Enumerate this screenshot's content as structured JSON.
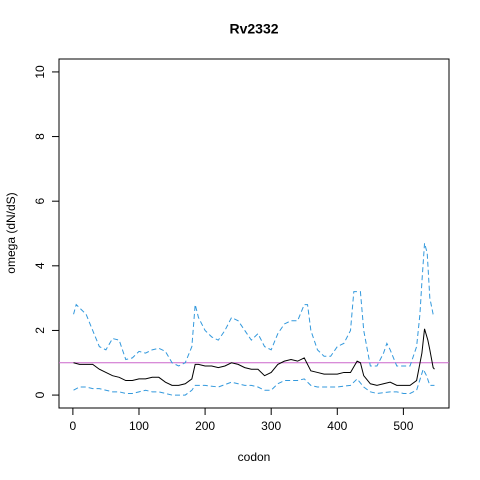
{
  "chart_data": {
    "type": "line",
    "title": "Rv2332",
    "x_label": "codon",
    "y_label": "omega (dN/dS)",
    "xlim": [
      -21,
      569
    ],
    "ylim": [
      -0.4,
      10.4
    ],
    "xticks": [
      0,
      100,
      200,
      300,
      400,
      500
    ],
    "yticks": [
      0,
      2,
      4,
      6,
      8,
      10
    ],
    "hline": 1,
    "hline_color": "#cc66cc",
    "series": [
      {
        "name": "upper",
        "color": "#3399dd",
        "dashed": true,
        "x": [
          1,
          5,
          10,
          20,
          30,
          40,
          50,
          60,
          70,
          80,
          90,
          100,
          110,
          120,
          130,
          140,
          150,
          160,
          170,
          180,
          185,
          190,
          200,
          210,
          220,
          230,
          240,
          250,
          260,
          270,
          280,
          290,
          300,
          310,
          320,
          330,
          340,
          350,
          355,
          360,
          370,
          380,
          390,
          400,
          410,
          420,
          425,
          435,
          440,
          450,
          460,
          470,
          475,
          480,
          490,
          500,
          510,
          520,
          525,
          528,
          532,
          536,
          540,
          545,
          547
        ],
        "values": [
          2.5,
          2.8,
          2.7,
          2.5,
          2.0,
          1.5,
          1.4,
          1.75,
          1.7,
          1.1,
          1.15,
          1.35,
          1.3,
          1.4,
          1.45,
          1.35,
          1.0,
          0.9,
          1.0,
          1.5,
          2.8,
          2.4,
          2.0,
          1.8,
          1.7,
          2.0,
          2.4,
          2.3,
          2.0,
          1.7,
          1.9,
          1.5,
          1.4,
          1.9,
          2.2,
          2.3,
          2.3,
          2.8,
          2.8,
          2.0,
          1.4,
          1.2,
          1.2,
          1.5,
          1.6,
          2.0,
          3.2,
          3.2,
          2.0,
          0.9,
          0.9,
          1.3,
          1.6,
          1.4,
          0.9,
          0.9,
          0.9,
          1.5,
          2.5,
          3.5,
          4.7,
          4.4,
          3.0,
          2.5,
          2.45
        ]
      },
      {
        "name": "omega",
        "color": "#000000",
        "dashed": false,
        "x": [
          1,
          10,
          20,
          30,
          40,
          50,
          60,
          70,
          80,
          90,
          100,
          110,
          120,
          130,
          140,
          150,
          160,
          170,
          180,
          185,
          190,
          200,
          210,
          220,
          230,
          240,
          250,
          260,
          270,
          280,
          290,
          300,
          310,
          320,
          330,
          340,
          350,
          360,
          370,
          380,
          390,
          400,
          410,
          420,
          430,
          435,
          440,
          450,
          460,
          470,
          480,
          490,
          500,
          510,
          520,
          528,
          532,
          537,
          540,
          545,
          547
        ],
        "values": [
          1.0,
          0.95,
          0.95,
          0.95,
          0.8,
          0.7,
          0.6,
          0.55,
          0.45,
          0.45,
          0.5,
          0.5,
          0.55,
          0.55,
          0.4,
          0.3,
          0.3,
          0.35,
          0.5,
          0.95,
          0.95,
          0.9,
          0.9,
          0.85,
          0.9,
          1.0,
          0.95,
          0.85,
          0.8,
          0.8,
          0.6,
          0.7,
          0.95,
          1.05,
          1.1,
          1.05,
          1.15,
          0.75,
          0.7,
          0.65,
          0.65,
          0.65,
          0.7,
          0.7,
          1.05,
          1.0,
          0.6,
          0.35,
          0.3,
          0.35,
          0.4,
          0.3,
          0.3,
          0.3,
          0.45,
          1.3,
          2.05,
          1.7,
          1.4,
          0.85,
          0.8
        ]
      },
      {
        "name": "lower",
        "color": "#3399dd",
        "dashed": true,
        "x": [
          1,
          10,
          20,
          30,
          40,
          50,
          60,
          70,
          80,
          90,
          100,
          110,
          120,
          130,
          140,
          150,
          160,
          170,
          180,
          185,
          200,
          220,
          240,
          250,
          260,
          270,
          280,
          290,
          300,
          310,
          320,
          340,
          350,
          360,
          370,
          380,
          400,
          420,
          430,
          440,
          450,
          460,
          480,
          490,
          500,
          510,
          520,
          530,
          535,
          540,
          547
        ],
        "values": [
          0.15,
          0.25,
          0.25,
          0.2,
          0.2,
          0.15,
          0.1,
          0.1,
          0.05,
          0.05,
          0.1,
          0.15,
          0.1,
          0.1,
          0.05,
          0.0,
          0.0,
          0.0,
          0.15,
          0.3,
          0.3,
          0.25,
          0.4,
          0.35,
          0.3,
          0.3,
          0.25,
          0.15,
          0.15,
          0.35,
          0.45,
          0.45,
          0.5,
          0.3,
          0.25,
          0.25,
          0.25,
          0.3,
          0.5,
          0.25,
          0.1,
          0.05,
          0.1,
          0.1,
          0.05,
          0.05,
          0.15,
          0.8,
          0.6,
          0.3,
          0.3
        ]
      }
    ]
  }
}
